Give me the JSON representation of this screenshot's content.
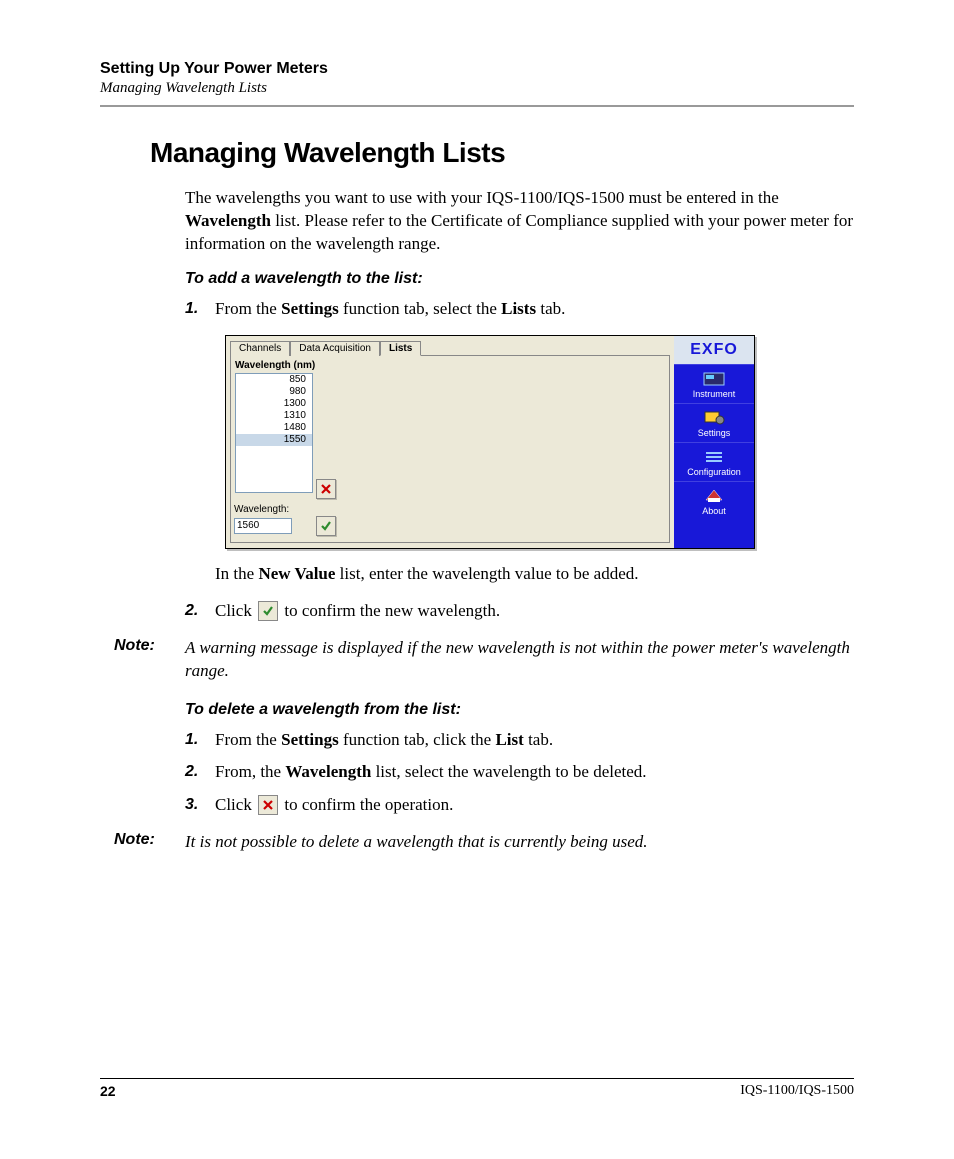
{
  "header": {
    "chapter": "Setting Up Your Power Meters",
    "section": "Managing Wavelength Lists"
  },
  "title": "Managing Wavelength Lists",
  "intro": {
    "pre": "The wavelengths you want to use with your IQS-1100/IQS-1500 must be entered in the ",
    "bold": "Wavelength",
    "post": " list. Please refer to the Certificate of Compliance supplied with your power meter for information on the wavelength range."
  },
  "add": {
    "heading": "To add a wavelength to the list:",
    "step1": {
      "num": "1.",
      "pre": "From the ",
      "b1": "Settings",
      "mid": " function tab, select the ",
      "b2": "Lists",
      "post": " tab."
    },
    "caption": {
      "pre": "In the ",
      "b": "New Value",
      "post": " list, enter the wavelength value to be added."
    },
    "step2": {
      "num": "2.",
      "pre": "Click ",
      "post": " to confirm the new wavelength."
    }
  },
  "note1": {
    "label": "Note:",
    "text": "A warning message is displayed if the new wavelength is not within the power meter's wavelength range."
  },
  "del": {
    "heading": "To delete a wavelength from the list:",
    "step1": {
      "num": "1.",
      "pre": "From the ",
      "b1": "Settings",
      "mid": " function tab, click the ",
      "b2": "List",
      "post": " tab."
    },
    "step2": {
      "num": "2.",
      "pre": "From, the ",
      "b1": "Wavelength",
      "post": " list, select the wavelength to be deleted."
    },
    "step3": {
      "num": "3.",
      "pre": "Click ",
      "post": " to confirm the operation."
    }
  },
  "note2": {
    "label": "Note:",
    "text": "It is not possible to delete a wavelength that is currently being used."
  },
  "screenshot": {
    "tabs": {
      "channels": "Channels",
      "data_acq": "Data Acquisition",
      "lists": "Lists"
    },
    "group_label": "Wavelength (nm)",
    "list": [
      "850",
      "980",
      "1300",
      "1310",
      "1480",
      "1550"
    ],
    "selected_index": 5,
    "wl_label": "Wavelength:",
    "wl_value": "1560",
    "logo": "EXFO",
    "side": {
      "instrument": "Instrument",
      "settings": "Settings",
      "configuration": "Configuration",
      "about": "About"
    },
    "colors": {
      "panel_bg": "#ece9d8",
      "side_bg": "#1818d8",
      "logo_bg": "#dbe4f0",
      "check": "#2e8b2e",
      "cross": "#cc0000",
      "input_border": "#7f9db9"
    }
  },
  "footer": {
    "page": "22",
    "doc": "IQS-1100/IQS-1500"
  }
}
